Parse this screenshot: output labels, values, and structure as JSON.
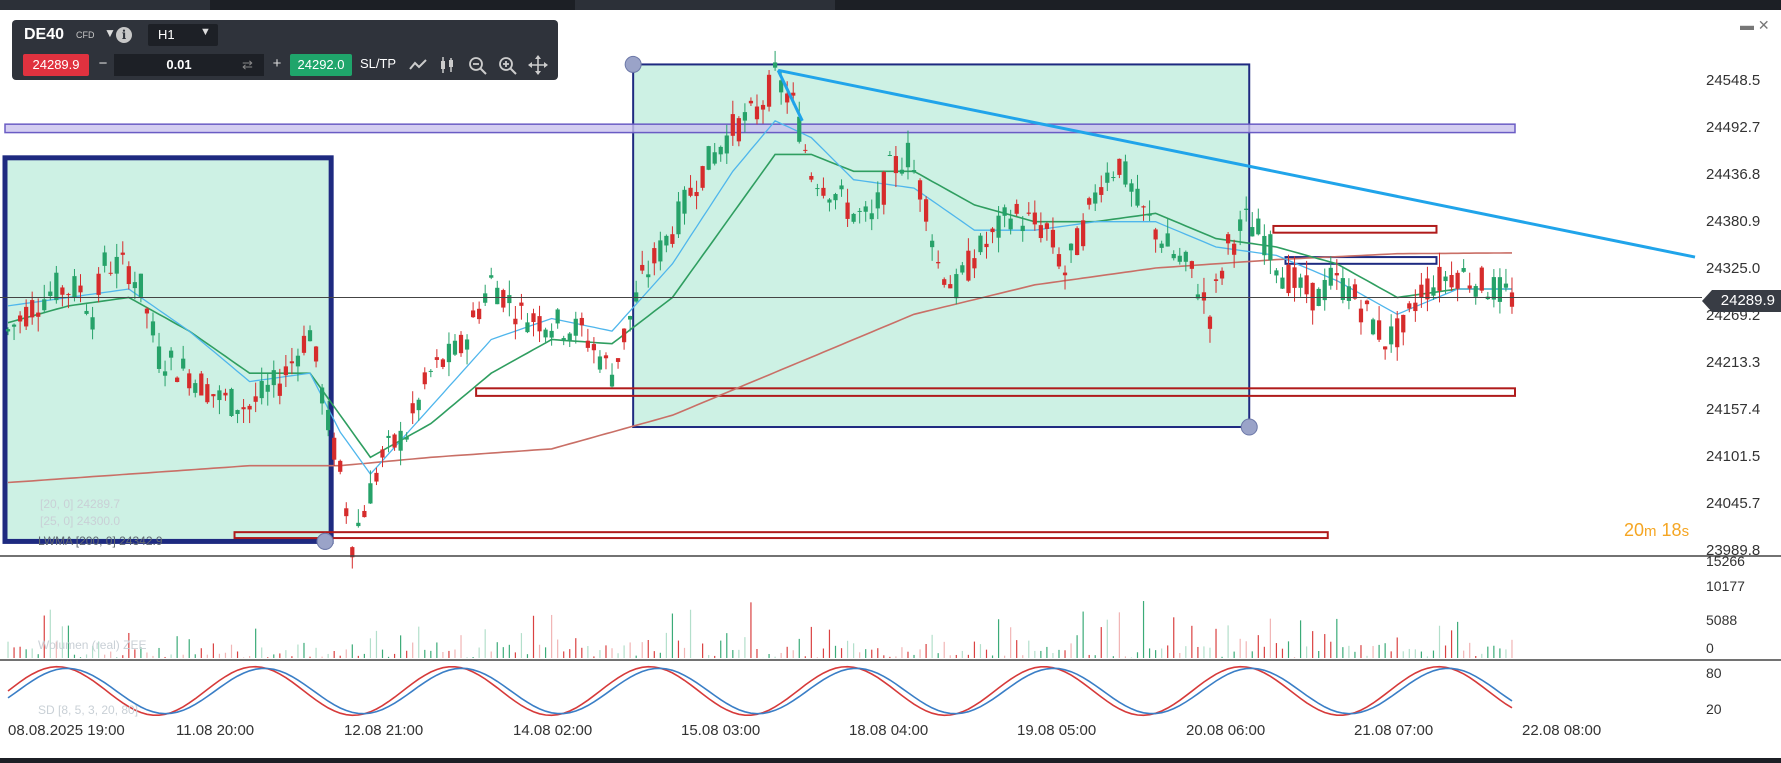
{
  "toolbar": {
    "symbol": "DE40",
    "symbol_type": "CFD",
    "timeframe": "H1",
    "bid": "24289.9",
    "lot": "0.01",
    "ask": "24292.0",
    "sltp_label": "SL/TP",
    "minus_label": "−",
    "plus_label": "+"
  },
  "icons": [
    "chevron-down-icon",
    "info-icon",
    "chevron-down-icon",
    "reset-icon",
    "line-chart-icon",
    "candle-chart-icon",
    "zoom-out-icon",
    "zoom-in-icon",
    "move-icon",
    "minimize-icon",
    "close-icon"
  ],
  "timer": {
    "minutes": "20",
    "min_unit": "m",
    "seconds": "18",
    "sec_unit": "s"
  },
  "current_price_label": "24289.9",
  "overlays": {
    "lwma_label": "LWMA [200, 0] 24342.9",
    "volume_label": "Wolumen (real) ZEE",
    "sd_label": "SD [8, 5, 3, 20, 80]",
    "faint_line_1": "[20, 0] 24289.7",
    "faint_line_2": "[25, 0] 24300.0"
  },
  "colors": {
    "up": "#26a269",
    "down": "#d62c2c",
    "ema_fast": "#4fb6ec",
    "ema_slow": "#2f9e60",
    "lwma": "#c96f66",
    "trendline": "#20a4ea",
    "zone_fill": "#c8efe1",
    "zone_border": "#1e2a80",
    "supply_red": "#b01b1b",
    "stoch_k": "#d63a3a",
    "stoch_d": "#3a7ec6",
    "bid_red": "#e0323f",
    "ask_green": "#1fa56b",
    "timer_orange": "#f5a623"
  },
  "chart_data": {
    "type": "candlestick",
    "y_ticks": [
      "24548.5",
      "24492.7",
      "24436.8",
      "24380.9",
      "24325.0",
      "24269.2",
      "24213.3",
      "24157.4",
      "24101.5",
      "24045.7",
      "23989.8"
    ],
    "ylim": [
      23989.8,
      24548.5
    ],
    "x_ticks": [
      "08.08.2025 19:00",
      "11.08 20:00",
      "12.08 21:00",
      "14.08 02:00",
      "15.08 03:00",
      "18.08 04:00",
      "19.08 05:00",
      "20.08 06:00",
      "21.08 07:00",
      "22.08 08:00"
    ],
    "last_price": 24289.9,
    "close_path": [
      [
        0,
        24250
      ],
      [
        4,
        24280
      ],
      [
        8,
        24300
      ],
      [
        12,
        24300
      ],
      [
        14,
        24270
      ],
      [
        16,
        24330
      ],
      [
        20,
        24325
      ],
      [
        22,
        24300
      ],
      [
        25,
        24220
      ],
      [
        30,
        24200
      ],
      [
        35,
        24170
      ],
      [
        40,
        24160
      ],
      [
        45,
        24190
      ],
      [
        50,
        24250
      ],
      [
        53,
        24140
      ],
      [
        55,
        24080
      ],
      [
        57,
        24000
      ],
      [
        60,
        24060
      ],
      [
        62,
        24100
      ],
      [
        66,
        24130
      ],
      [
        70,
        24200
      ],
      [
        75,
        24230
      ],
      [
        80,
        24310
      ],
      [
        85,
        24270
      ],
      [
        90,
        24260
      ],
      [
        95,
        24250
      ],
      [
        100,
        24200
      ],
      [
        105,
        24310
      ],
      [
        110,
        24370
      ],
      [
        114,
        24430
      ],
      [
        118,
        24470
      ],
      [
        120,
        24490
      ],
      [
        122,
        24500
      ],
      [
        124,
        24510
      ],
      [
        127,
        24550
      ],
      [
        130,
        24520
      ],
      [
        133,
        24440
      ],
      [
        136,
        24420
      ],
      [
        140,
        24390
      ],
      [
        143,
        24380
      ],
      [
        146,
        24440
      ],
      [
        149,
        24460
      ],
      [
        152,
        24400
      ],
      [
        154,
        24330
      ],
      [
        157,
        24300
      ],
      [
        160,
        24340
      ],
      [
        163,
        24360
      ],
      [
        166,
        24390
      ],
      [
        169,
        24380
      ],
      [
        172,
        24370
      ],
      [
        175,
        24320
      ],
      [
        178,
        24370
      ],
      [
        181,
        24430
      ],
      [
        184,
        24450
      ],
      [
        187,
        24400
      ],
      [
        190,
        24370
      ],
      [
        193,
        24340
      ],
      [
        196,
        24320
      ],
      [
        199,
        24270
      ],
      [
        202,
        24350
      ],
      [
        205,
        24380
      ],
      [
        208,
        24360
      ],
      [
        211,
        24320
      ],
      [
        214,
        24300
      ],
      [
        217,
        24290
      ],
      [
        219,
        24310
      ],
      [
        222,
        24300
      ],
      [
        225,
        24270
      ],
      [
        228,
        24240
      ],
      [
        231,
        24250
      ],
      [
        234,
        24300
      ],
      [
        237,
        24310
      ],
      [
        240,
        24320
      ],
      [
        243,
        24310
      ],
      [
        246,
        24300
      ],
      [
        249,
        24290
      ]
    ],
    "ema_fast": [
      [
        0,
        24280
      ],
      [
        10,
        24290
      ],
      [
        20,
        24300
      ],
      [
        30,
        24250
      ],
      [
        40,
        24190
      ],
      [
        50,
        24200
      ],
      [
        55,
        24130
      ],
      [
        60,
        24080
      ],
      [
        70,
        24160
      ],
      [
        80,
        24240
      ],
      [
        90,
        24265
      ],
      [
        100,
        24250
      ],
      [
        110,
        24330
      ],
      [
        120,
        24440
      ],
      [
        127,
        24500
      ],
      [
        133,
        24480
      ],
      [
        140,
        24430
      ],
      [
        150,
        24420
      ],
      [
        160,
        24370
      ],
      [
        170,
        24370
      ],
      [
        180,
        24380
      ],
      [
        190,
        24380
      ],
      [
        200,
        24350
      ],
      [
        210,
        24340
      ],
      [
        220,
        24310
      ],
      [
        230,
        24270
      ],
      [
        240,
        24300
      ],
      [
        249,
        24300
      ]
    ],
    "ema_slow": [
      [
        0,
        24260
      ],
      [
        10,
        24280
      ],
      [
        20,
        24290
      ],
      [
        30,
        24250
      ],
      [
        40,
        24200
      ],
      [
        50,
        24200
      ],
      [
        55,
        24150
      ],
      [
        60,
        24100
      ],
      [
        70,
        24140
      ],
      [
        80,
        24200
      ],
      [
        90,
        24240
      ],
      [
        100,
        24235
      ],
      [
        110,
        24290
      ],
      [
        120,
        24390
      ],
      [
        127,
        24460
      ],
      [
        133,
        24460
      ],
      [
        140,
        24440
      ],
      [
        150,
        24440
      ],
      [
        160,
        24400
      ],
      [
        170,
        24380
      ],
      [
        180,
        24380
      ],
      [
        190,
        24390
      ],
      [
        200,
        24360
      ],
      [
        210,
        24350
      ],
      [
        220,
        24330
      ],
      [
        230,
        24290
      ],
      [
        240,
        24300
      ],
      [
        249,
        24300
      ]
    ],
    "lwma200": [
      [
        0,
        24070
      ],
      [
        20,
        24080
      ],
      [
        40,
        24090
      ],
      [
        55,
        24090
      ],
      [
        70,
        24100
      ],
      [
        90,
        24110
      ],
      [
        110,
        24150
      ],
      [
        130,
        24210
      ],
      [
        150,
        24270
      ],
      [
        170,
        24305
      ],
      [
        190,
        24325
      ],
      [
        210,
        24335
      ],
      [
        230,
        24342
      ],
      [
        249,
        24343
      ]
    ],
    "zones": [
      {
        "kind": "demand-box",
        "x0": 0,
        "x1": 53,
        "y0": 24000,
        "y1": 24456
      },
      {
        "kind": "demand-box",
        "x0": 104,
        "x1": 205,
        "y0": 24136,
        "y1": 24567
      },
      {
        "kind": "range-band",
        "x0": 0,
        "x1": 249,
        "y0": 24486,
        "y1": 24496
      },
      {
        "kind": "supply-band",
        "x0": 78,
        "x1": 249,
        "y0": 24173,
        "y1": 24182
      },
      {
        "kind": "supply-band",
        "x0": 38,
        "x1": 218,
        "y0": 24004,
        "y1": 24011
      },
      {
        "kind": "supply-band",
        "x0": 210,
        "x1": 236,
        "y0": 24367,
        "y1": 24375
      },
      {
        "kind": "small-box",
        "x0": 212,
        "x1": 236,
        "y0": 24330,
        "y1": 24338
      }
    ],
    "trendline": [
      [
        128,
        24560
      ],
      [
        249,
        24338
      ]
    ],
    "volume_ticks": [
      "15266",
      "10177",
      "5088",
      "0"
    ],
    "volume_max": 15266,
    "oscillator_ticks": [
      "80",
      "20"
    ],
    "oscillator_range": [
      0,
      100
    ]
  }
}
